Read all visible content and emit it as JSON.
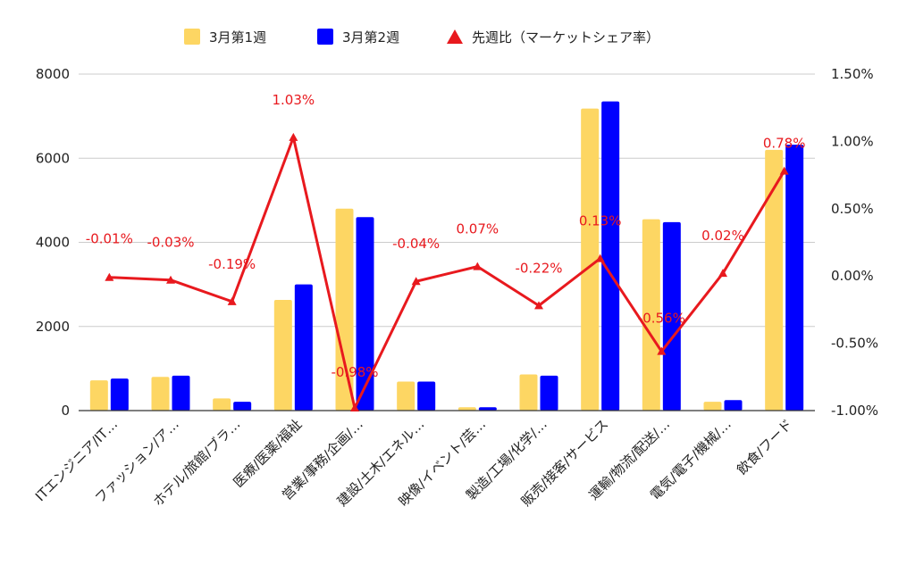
{
  "chart_data": {
    "type": "bar",
    "categories": [
      "ITエンジニア/IT…",
      "ファッション/ア…",
      "ホテル/旅館/ブラ…",
      "医療/医薬/福祉",
      "営業/事務/企画/…",
      "建設/土木/エネル…",
      "映像/イベント/芸…",
      "製造/工場/化学/…",
      "販売/接客/サービス",
      "運輸/物流/配送/…",
      "電気/電子/機械/…",
      "飲食/フード"
    ],
    "series": [
      {
        "name": "3月第1週",
        "kind": "bar",
        "axis": "left",
        "color": "#fdd663",
        "values": [
          720,
          800,
          290,
          2630,
          4800,
          690,
          80,
          860,
          7180,
          4550,
          210,
          6200
        ]
      },
      {
        "name": "3月第2週",
        "kind": "bar",
        "axis": "left",
        "color": "#0000ff",
        "values": [
          760,
          830,
          210,
          3000,
          4600,
          690,
          80,
          830,
          7350,
          4480,
          250,
          6320
        ]
      },
      {
        "name": "先週比（マーケットシェア率）",
        "kind": "line",
        "axis": "right",
        "color": "#e8191e",
        "values": [
          -0.01,
          -0.03,
          -0.19,
          1.03,
          -0.98,
          -0.04,
          0.07,
          -0.22,
          0.13,
          -0.56,
          0.02,
          0.78
        ],
        "labels": [
          "-0.01%",
          "-0.03%",
          "-0.19%",
          "1.03%",
          "-0.98%",
          "-0.04%",
          "0.07%",
          "-0.22%",
          "0.13%",
          "-0.56%",
          "0.02%",
          "0.78%"
        ]
      }
    ],
    "y_left": {
      "min": 0,
      "max": 8000,
      "ticks": [
        "0",
        "2000",
        "4000",
        "6000",
        "8000"
      ],
      "tick_values": [
        0,
        2000,
        4000,
        6000,
        8000
      ]
    },
    "y_right": {
      "min": -1.0,
      "max": 1.5,
      "ticks": [
        "-1.00%",
        "-0.50%",
        "0.00%",
        "0.50%",
        "1.00%",
        "1.50%"
      ],
      "tick_values": [
        -1.0,
        -0.5,
        0.0,
        0.5,
        1.0,
        1.5
      ]
    },
    "grid": true,
    "legend_position": "top-center",
    "xlabel": "",
    "ylabel": ""
  }
}
